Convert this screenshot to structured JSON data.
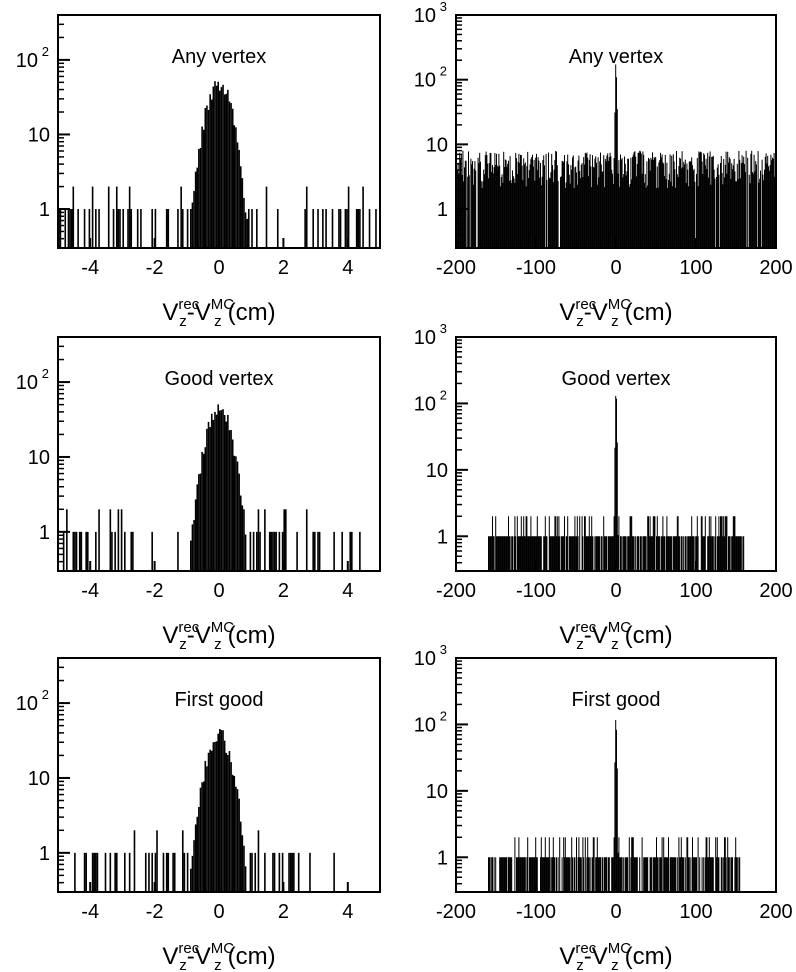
{
  "chart_data": [
    {
      "type": "histogram",
      "label": "Any vertex",
      "xlabel": {
        "base": "V",
        "sub1": "z",
        "sup1": "rec",
        "sep": "-",
        "sub2": "z",
        "sup2": "MC",
        "unit": "(cm)"
      },
      "xlim": [
        -5,
        5
      ],
      "ylim": [
        0.3,
        400
      ],
      "yscale": "log",
      "xticks": [
        -4,
        -2,
        0,
        2,
        4
      ],
      "yticks": [
        {
          "v": 1,
          "t": "1"
        },
        {
          "v": 10,
          "t": "10"
        },
        {
          "v": 100,
          "t": "10",
          "sup": "2"
        }
      ],
      "core": {
        "center": 0,
        "sigma": 0.3,
        "peak": 50
      },
      "background": {
        "range": [
          -5,
          5
        ],
        "level": 1,
        "max": 2,
        "occupancy": 0.45
      }
    },
    {
      "type": "histogram",
      "label": "Any vertex",
      "xlabel": {
        "base": "V",
        "sub1": "z",
        "sup1": "rec",
        "sep": "-",
        "sub2": "z",
        "sup2": "MC",
        "unit": "(cm)"
      },
      "xlim": [
        -200,
        200
      ],
      "ylim": [
        0.25,
        1000
      ],
      "yscale": "log",
      "xticks": [
        -200,
        -100,
        0,
        100,
        200
      ],
      "yticks": [
        {
          "v": 1,
          "t": "1"
        },
        {
          "v": 10,
          "t": "10"
        },
        {
          "v": 100,
          "t": "10",
          "sup": "2"
        },
        {
          "v": 1000,
          "t": "10",
          "sup": "3"
        }
      ],
      "core": {
        "center": 0,
        "sigma": 0.8,
        "peak": 170
      },
      "background": {
        "range": [
          -200,
          200
        ],
        "level": 3.5,
        "max": 8,
        "occupancy": 0.97
      }
    },
    {
      "type": "histogram",
      "label": "Good vertex",
      "xlabel": {
        "base": "V",
        "sub1": "z",
        "sup1": "rec",
        "sep": "-",
        "sub2": "z",
        "sup2": "MC",
        "unit": "(cm)"
      },
      "xlim": [
        -5,
        5
      ],
      "ylim": [
        0.3,
        400
      ],
      "yscale": "log",
      "xticks": [
        -4,
        -2,
        0,
        2,
        4
      ],
      "yticks": [
        {
          "v": 1,
          "t": "1"
        },
        {
          "v": 10,
          "t": "10"
        },
        {
          "v": 100,
          "t": "10",
          "sup": "2"
        }
      ],
      "core": {
        "center": 0,
        "sigma": 0.3,
        "peak": 45
      },
      "background": {
        "range": [
          -5,
          4.5
        ],
        "level": 1,
        "max": 2,
        "occupancy": 0.35
      }
    },
    {
      "type": "histogram",
      "label": "Good vertex",
      "xlabel": {
        "base": "V",
        "sub1": "z",
        "sup1": "rec",
        "sep": "-",
        "sub2": "z",
        "sup2": "MC",
        "unit": "(cm)"
      },
      "xlim": [
        -200,
        200
      ],
      "ylim": [
        0.3,
        1000
      ],
      "yscale": "log",
      "xticks": [
        -200,
        -100,
        0,
        100,
        200
      ],
      "yticks": [
        {
          "v": 1,
          "t": "1"
        },
        {
          "v": 10,
          "t": "10"
        },
        {
          "v": 100,
          "t": "10",
          "sup": "2"
        },
        {
          "v": 1000,
          "t": "10",
          "sup": "3"
        }
      ],
      "core": {
        "center": 0,
        "sigma": 0.8,
        "peak": 150
      },
      "background": {
        "range": [
          -160,
          160
        ],
        "level": 1,
        "max": 2,
        "occupancy": 0.85
      }
    },
    {
      "type": "histogram",
      "label": "First good",
      "xlabel": {
        "base": "V",
        "sub1": "z",
        "sup1": "rec",
        "sep": "-",
        "sub2": "z",
        "sup2": "MC",
        "unit": "(cm)"
      },
      "xlim": [
        -5,
        5
      ],
      "ylim": [
        0.3,
        400
      ],
      "yscale": "log",
      "xticks": [
        -4,
        -2,
        0,
        2,
        4
      ],
      "yticks": [
        {
          "v": 1,
          "t": "1"
        },
        {
          "v": 10,
          "t": "10"
        },
        {
          "v": 100,
          "t": "10",
          "sup": "2"
        }
      ],
      "core": {
        "center": 0,
        "sigma": 0.3,
        "peak": 38
      },
      "background": {
        "range": [
          -4.6,
          3.6
        ],
        "level": 1,
        "max": 2,
        "occupancy": 0.28
      }
    },
    {
      "type": "histogram",
      "label": "First good",
      "xlabel": {
        "base": "V",
        "sub1": "z",
        "sup1": "rec",
        "sep": "-",
        "sub2": "z",
        "sup2": "MC",
        "unit": "(cm)"
      },
      "xlim": [
        -200,
        200
      ],
      "ylim": [
        0.3,
        1000
      ],
      "yscale": "log",
      "xticks": [
        -200,
        -100,
        0,
        100,
        200
      ],
      "yticks": [
        {
          "v": 1,
          "t": "1"
        },
        {
          "v": 10,
          "t": "10"
        },
        {
          "v": 100,
          "t": "10",
          "sup": "2"
        },
        {
          "v": 1000,
          "t": "10",
          "sup": "3"
        }
      ],
      "core": {
        "center": 0,
        "sigma": 0.8,
        "peak": 125
      },
      "background": {
        "range": [
          -160,
          155
        ],
        "level": 1,
        "max": 2,
        "occupancy": 0.8
      }
    }
  ]
}
